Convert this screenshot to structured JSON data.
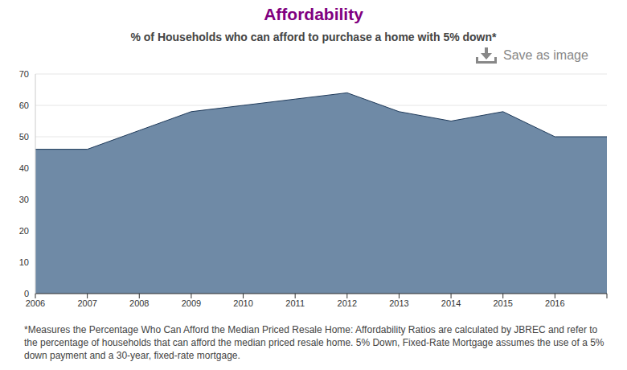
{
  "chart_data": {
    "type": "area",
    "title": "Affordability",
    "subtitle": "% of Households who can afford to purchase a home with 5% down*",
    "annotations": [
      "Save as image"
    ],
    "footnote": "*Measures the Percentage Who Can Afford the Median Priced Resale Home: Affordability Ratios are calculated by JBREC and refer to the percentage of households that can afford the median priced resale home. 5% Down, Fixed-Rate Mortgage assumes the use of a 5% down payment and a 30-year, fixed-rate mortgage.",
    "categories": [
      "2006",
      "2007",
      "2008",
      "2009",
      "2010",
      "2011",
      "2012",
      "2013",
      "2014",
      "2015",
      "2016",
      null
    ],
    "values": [
      46,
      46,
      52,
      58,
      60,
      62,
      64,
      58,
      55,
      58,
      50,
      50
    ],
    "color": "#6f8aa6",
    "ylim": [
      0,
      70
    ],
    "yticks": [
      0,
      10,
      20,
      30,
      40,
      50,
      60,
      70
    ],
    "grid": true
  }
}
